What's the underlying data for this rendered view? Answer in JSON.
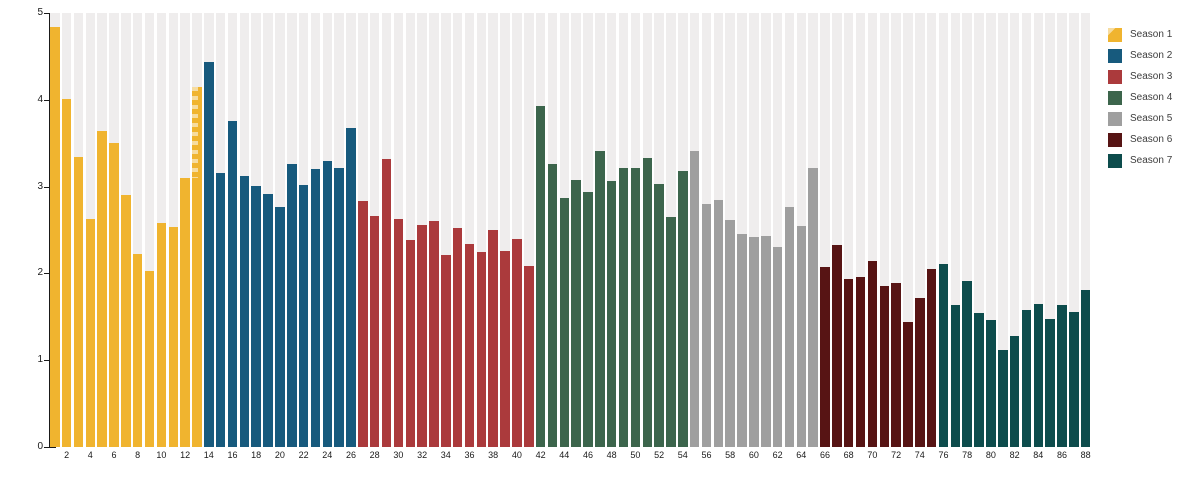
{
  "chart_data": {
    "type": "bar",
    "title": "",
    "description": "Per-episode bar chart, episodes 1-88 grouped by season color",
    "x_axis": {
      "first_episode": 1,
      "last_episode": 88,
      "tick_label_step": 2
    },
    "y_axis": {
      "min": 0,
      "max": 5,
      "ticks": [
        0,
        1,
        2,
        3,
        4,
        5
      ]
    },
    "grid": false,
    "legend_position": "top-right",
    "colors": {
      "background_column": "#efeded",
      "axis": "#1a1a1a",
      "tick_label": "#1a1a1a",
      "legend_text": "#3d3d3d",
      "hatch_light": "#f6dca0"
    },
    "series": [
      {
        "name": "Season 1",
        "color": "#f0b42f",
        "start_episode": 1,
        "values": [
          4.84,
          4.01,
          3.34,
          2.63,
          3.64,
          3.5,
          2.9,
          2.22,
          2.03,
          2.58,
          2.54,
          3.1,
          4.15
        ],
        "hatched_episode": 13,
        "hatch_from_value": 3.1
      },
      {
        "name": "Season 2",
        "color": "#175a7d",
        "start_episode": 14,
        "values": [
          4.43,
          3.16,
          3.76,
          3.12,
          3.01,
          2.91,
          2.77,
          3.26,
          3.02,
          3.2,
          3.3,
          3.22,
          3.67
        ]
      },
      {
        "name": "Season 3",
        "color": "#ab3a3c",
        "start_episode": 27,
        "values": [
          2.83,
          2.66,
          3.32,
          2.63,
          2.39,
          2.56,
          2.6,
          2.21,
          2.52,
          2.34,
          2.25,
          2.5,
          2.26,
          2.4,
          2.08
        ]
      },
      {
        "name": "Season 4",
        "color": "#3c654c",
        "start_episode": 42,
        "values": [
          3.93,
          3.26,
          2.87,
          3.08,
          2.94,
          3.41,
          3.07,
          3.22,
          3.21,
          3.33,
          3.03,
          2.65,
          3.18
        ]
      },
      {
        "name": "Season 5",
        "color": "#9f9f9f",
        "start_episode": 55,
        "values": [
          3.41,
          2.8,
          2.85,
          2.61,
          2.45,
          2.42,
          2.43,
          2.3,
          2.77,
          2.55,
          3.21
        ]
      },
      {
        "name": "Season 6",
        "color": "#571414",
        "start_episode": 66,
        "values": [
          2.07,
          2.33,
          1.94,
          1.96,
          2.14,
          1.86,
          1.89,
          1.44,
          1.72,
          2.05
        ]
      },
      {
        "name": "Season 7",
        "color": "#0d4c4c",
        "start_episode": 76,
        "values": [
          2.11,
          1.64,
          1.91,
          1.54,
          1.46,
          1.12,
          1.28,
          1.58,
          1.65,
          1.47,
          1.64,
          1.56,
          1.81
        ]
      }
    ],
    "legend_entries": [
      "Season 1",
      "Season 2",
      "Season 3",
      "Season 4",
      "Season 5",
      "Season 6",
      "Season 7"
    ]
  }
}
